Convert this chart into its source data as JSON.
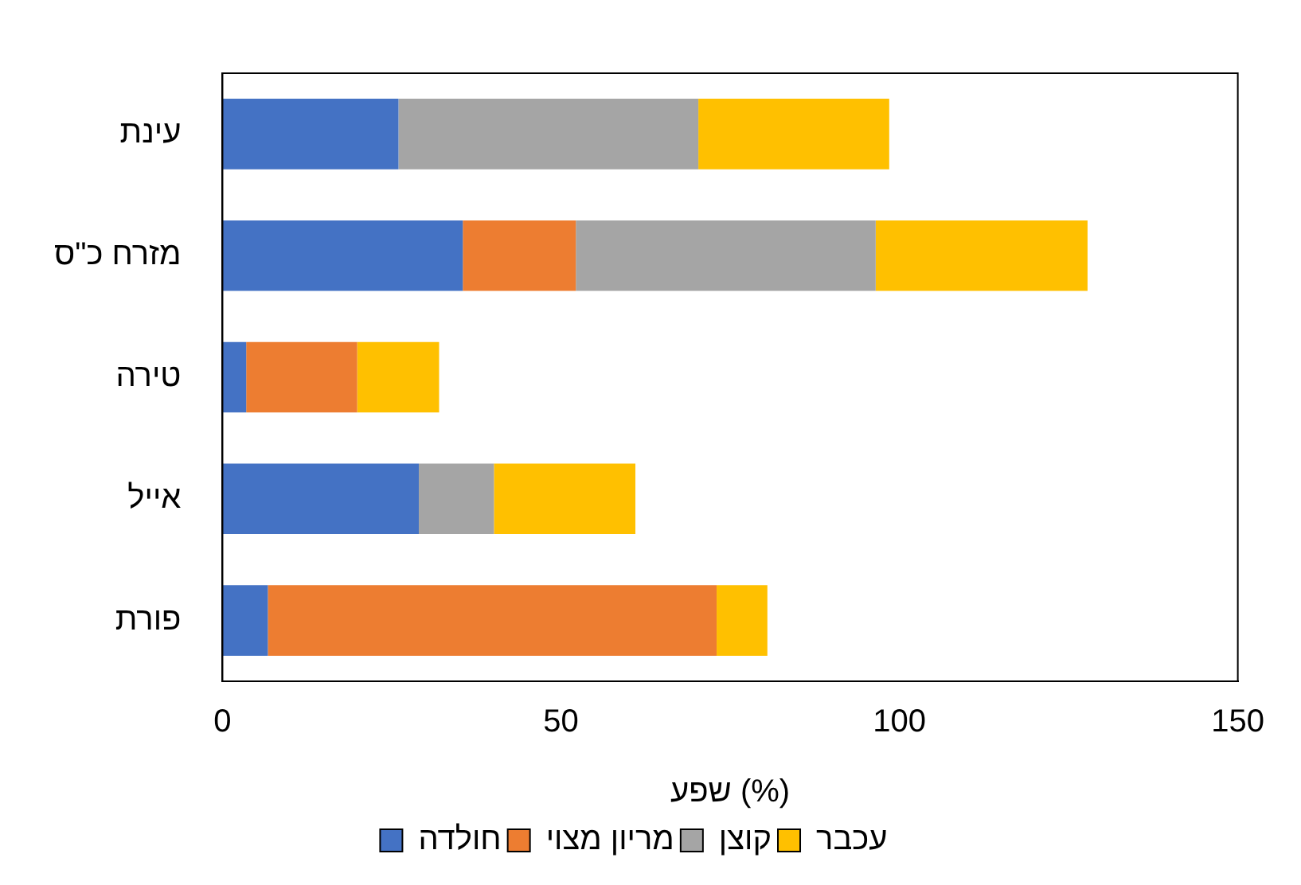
{
  "chart_data": {
    "type": "bar",
    "orientation": "horizontal",
    "stacked": true,
    "xlabel": "שפע (%)",
    "categories": [
      "עינת",
      "מזרח כ\"ס",
      "טירה",
      "אייל",
      "פורת"
    ],
    "series": [
      {
        "name": "חולדה",
        "color": "#4472c4",
        "values": [
          26,
          35.5,
          3.5,
          29,
          6.7
        ]
      },
      {
        "name": "מריון מצוי",
        "color": "#ed7d31",
        "values": [
          0,
          16.7,
          16.4,
          0,
          66.3
        ]
      },
      {
        "name": "קוצן",
        "color": "#a5a5a5",
        "values": [
          44.3,
          44.3,
          0,
          11.1,
          0
        ]
      },
      {
        "name": "עכבר",
        "color": "#ffc000",
        "values": [
          28.2,
          31.3,
          12.1,
          20.9,
          7.5
        ]
      }
    ],
    "xlim": [
      0,
      150
    ],
    "xticks": [
      0,
      50,
      100,
      150
    ],
    "grid": false,
    "legend": "bottom"
  }
}
